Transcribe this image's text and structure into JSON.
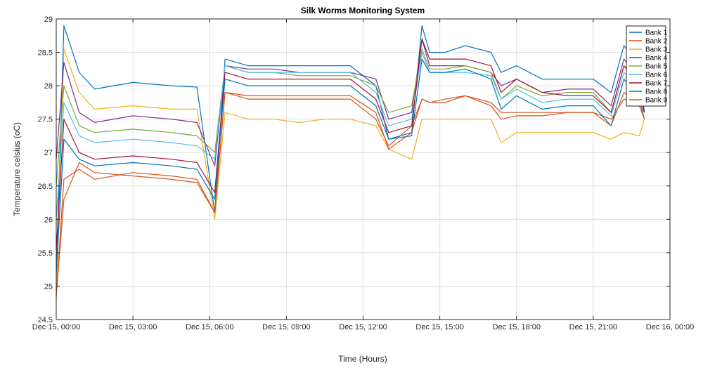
{
  "chart_data": {
    "type": "line",
    "title": "Silk Worms Monitoring System",
    "xlabel": "Time (Hours)",
    "ylabel": "Temperature celsius (oC)",
    "xlim": [
      0,
      24
    ],
    "ylim": [
      24.5,
      29
    ],
    "grid": true,
    "legend_position": "top-right",
    "x_tick_labels": [
      "Dec 15, 00:00",
      "Dec 15, 03:00",
      "Dec 15, 06:00",
      "Dec 15, 09:00",
      "Dec 15, 12:00",
      "Dec 15, 15:00",
      "Dec 15, 18:00",
      "Dec 15, 21:00",
      "Dec 16, 00:00"
    ],
    "x_tick_values": [
      0,
      3,
      6,
      9,
      12,
      15,
      18,
      21,
      24
    ],
    "y_tick_values": [
      24.5,
      25,
      25.5,
      26,
      26.5,
      27,
      27.5,
      28,
      28.5,
      29
    ],
    "y_tick_labels": [
      "24.5",
      "25",
      "25.5",
      "26",
      "26.5",
      "27",
      "27.5",
      "28",
      "28.5",
      "29"
    ],
    "x": [
      0.0,
      0.3,
      0.9,
      1.5,
      3.0,
      4.5,
      5.5,
      6.2,
      6.6,
      7.5,
      8.5,
      9.5,
      10.5,
      11.5,
      12.5,
      13.0,
      13.9,
      14.3,
      14.6,
      15.2,
      16.0,
      17.0,
      17.4,
      18.0,
      19.0,
      20.0,
      21.0,
      21.7,
      22.2,
      22.8,
      23.0
    ],
    "series": [
      {
        "name": "Bank 1",
        "color": "#0072BD",
        "values": [
          25.15,
          28.9,
          28.2,
          27.95,
          28.05,
          28.0,
          27.98,
          26.1,
          28.4,
          28.3,
          28.3,
          28.3,
          28.3,
          28.3,
          28.0,
          27.2,
          27.3,
          28.9,
          28.5,
          28.5,
          28.6,
          28.5,
          28.2,
          28.3,
          28.1,
          28.1,
          28.1,
          27.9,
          28.6,
          28.3,
          27.6
        ]
      },
      {
        "name": "Bank 2",
        "color": "#D95319",
        "values": [
          24.85,
          26.3,
          26.85,
          26.7,
          26.65,
          26.6,
          26.55,
          26.1,
          27.9,
          27.8,
          27.8,
          27.8,
          27.8,
          27.8,
          27.5,
          27.1,
          27.4,
          27.8,
          27.75,
          27.8,
          27.85,
          27.75,
          27.6,
          27.6,
          27.6,
          27.6,
          27.6,
          27.5,
          27.8,
          27.75,
          27.6
        ]
      },
      {
        "name": "Bank 3",
        "color": "#EDB120",
        "values": [
          24.8,
          28.55,
          27.9,
          27.65,
          27.7,
          27.65,
          27.65,
          26.0,
          27.6,
          27.5,
          27.5,
          27.45,
          27.5,
          27.5,
          27.4,
          27.05,
          26.9,
          27.5,
          27.5,
          27.5,
          27.5,
          27.5,
          27.15,
          27.3,
          27.3,
          27.3,
          27.3,
          27.2,
          27.3,
          27.25,
          27.5
        ]
      },
      {
        "name": "Bank 4",
        "color": "#7E2F8E",
        "values": [
          26.9,
          28.35,
          27.6,
          27.45,
          27.55,
          27.5,
          27.45,
          26.8,
          28.3,
          28.25,
          28.25,
          28.2,
          28.2,
          28.2,
          28.1,
          27.5,
          27.6,
          28.7,
          28.3,
          28.3,
          28.3,
          28.2,
          28.0,
          28.1,
          27.9,
          27.95,
          27.95,
          27.7,
          28.4,
          28.1,
          27.8
        ]
      },
      {
        "name": "Bank 5",
        "color": "#77AC30",
        "values": [
          26.5,
          28.0,
          27.4,
          27.3,
          27.35,
          27.3,
          27.25,
          27.0,
          28.3,
          28.2,
          28.2,
          28.15,
          28.15,
          28.15,
          28.0,
          27.6,
          27.7,
          28.55,
          28.25,
          28.25,
          28.3,
          28.2,
          27.8,
          28.0,
          27.85,
          27.9,
          27.9,
          27.6,
          28.3,
          28.0,
          27.7
        ]
      },
      {
        "name": "Bank 6",
        "color": "#4DBEEE",
        "values": [
          26.0,
          27.75,
          27.25,
          27.15,
          27.2,
          27.15,
          27.1,
          26.9,
          28.3,
          28.2,
          28.2,
          28.2,
          28.2,
          28.2,
          27.9,
          27.4,
          27.5,
          28.5,
          28.2,
          28.2,
          28.2,
          28.15,
          27.8,
          27.95,
          27.75,
          27.8,
          27.8,
          27.55,
          28.2,
          27.95,
          27.6
        ]
      },
      {
        "name": "Bank 7",
        "color": "#A2142F",
        "values": [
          25.55,
          27.5,
          27.0,
          26.9,
          26.95,
          26.9,
          26.85,
          26.4,
          28.2,
          28.1,
          28.1,
          28.1,
          28.1,
          28.1,
          27.8,
          27.3,
          27.4,
          28.7,
          28.4,
          28.4,
          28.4,
          28.3,
          27.9,
          28.1,
          27.9,
          27.85,
          27.85,
          27.6,
          28.3,
          28.0,
          27.6
        ]
      },
      {
        "name": "Bank 8",
        "color": "#0072BD",
        "values": [
          25.2,
          27.2,
          26.9,
          26.8,
          26.85,
          26.8,
          26.75,
          26.3,
          28.1,
          28.0,
          28.0,
          28.0,
          28.0,
          28.0,
          27.7,
          27.2,
          27.25,
          28.4,
          28.2,
          28.2,
          28.25,
          28.1,
          27.65,
          27.85,
          27.65,
          27.7,
          27.7,
          27.4,
          28.1,
          27.8,
          27.5
        ]
      },
      {
        "name": "Bank 9",
        "color": "#D95319",
        "values": [
          24.85,
          26.6,
          26.75,
          26.6,
          26.7,
          26.65,
          26.6,
          26.1,
          27.9,
          27.85,
          27.85,
          27.85,
          27.85,
          27.85,
          27.6,
          27.05,
          27.3,
          27.8,
          27.75,
          27.75,
          27.85,
          27.7,
          27.5,
          27.55,
          27.55,
          27.6,
          27.6,
          27.4,
          27.9,
          27.7,
          27.5
        ]
      }
    ]
  }
}
